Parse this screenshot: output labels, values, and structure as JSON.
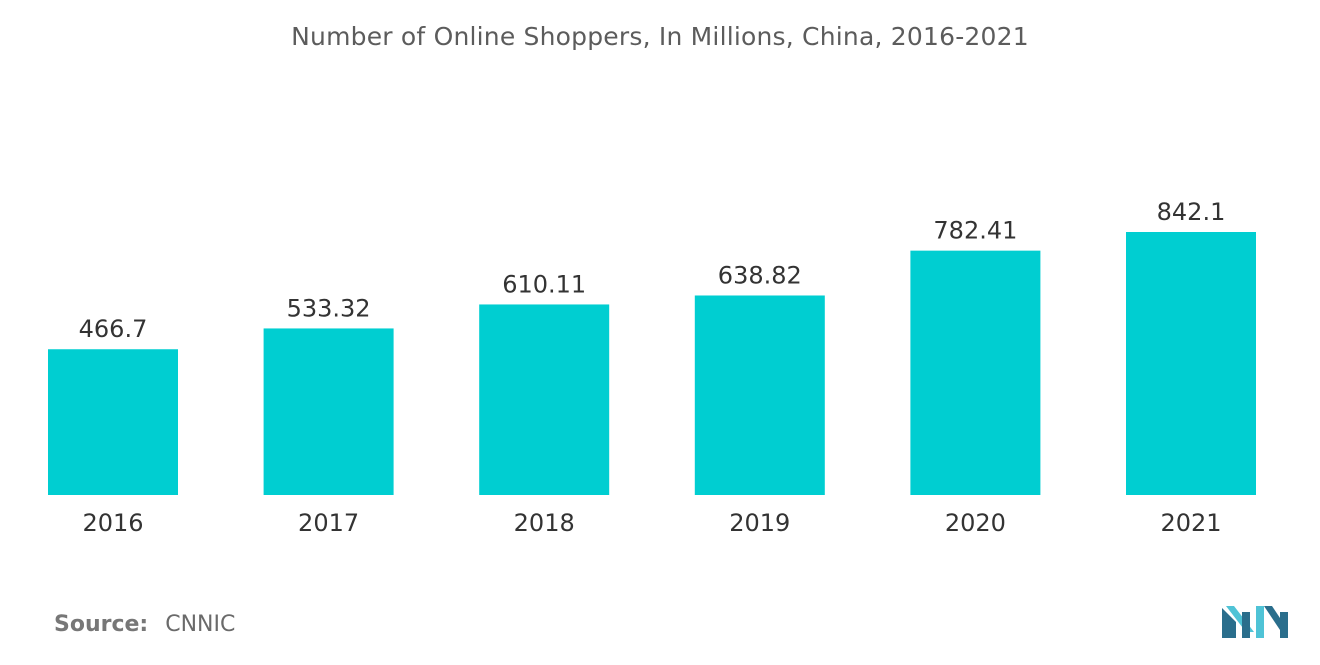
{
  "chart_data": {
    "type": "bar",
    "title": "Number of Online Shoppers, In Millions, China, 2016-2021",
    "xlabel": "",
    "ylabel": "",
    "categories": [
      "2016",
      "2017",
      "2018",
      "2019",
      "2020",
      "2021"
    ],
    "values": [
      466.7,
      533.32,
      610.11,
      638.82,
      782.41,
      842.1
    ],
    "value_labels": [
      "466.7",
      "533.32",
      "610.11",
      "638.82",
      "782.41",
      "842.1"
    ],
    "ylim": [
      0,
      842.1
    ],
    "grid": false,
    "legend": "none",
    "bar_color": "#00CED1"
  },
  "source": {
    "label": "Source:",
    "value": "CNNIC"
  },
  "colors": {
    "text": "#333333",
    "title": "#5c5c5c",
    "logo_dark": "#2A6E8C",
    "logo_light": "#4FC3D6"
  }
}
